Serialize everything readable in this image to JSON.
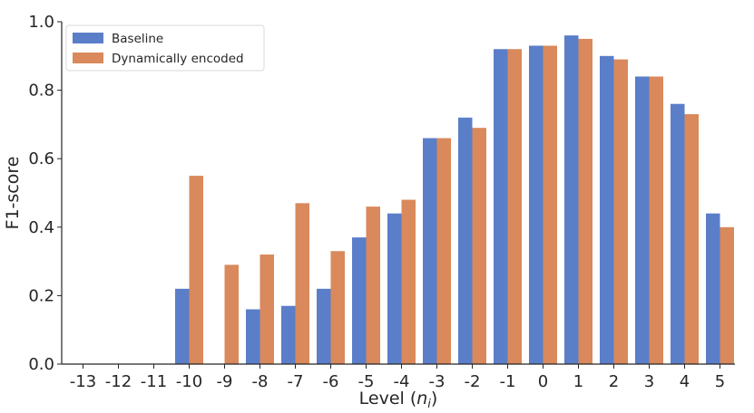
{
  "chart_data": {
    "type": "bar",
    "xlabel_prefix": "Level (",
    "xlabel_var": "n",
    "xlabel_sub": "i",
    "xlabel_suffix": ")",
    "ylabel": "F1-score",
    "ylim": [
      0,
      1.0
    ],
    "yticks": [
      "0.0",
      "0.2",
      "0.4",
      "0.6",
      "0.8",
      "1.0"
    ],
    "categories": [
      "-13",
      "-12",
      "-11",
      "-10",
      "-9",
      "-8",
      "-7",
      "-6",
      "-5",
      "-4",
      "-3",
      "-2",
      "-1",
      "0",
      "1",
      "2",
      "3",
      "4",
      "5"
    ],
    "series": [
      {
        "name": "Baseline",
        "color": "#5b7ec9",
        "values": [
          0,
          0,
          0,
          0.22,
          0,
          0.16,
          0.17,
          0.22,
          0.37,
          0.44,
          0.66,
          0.72,
          0.92,
          0.93,
          0.96,
          0.9,
          0.84,
          0.76,
          0.44
        ]
      },
      {
        "name": "Dynamically encoded",
        "color": "#d9895b",
        "values": [
          0,
          0,
          0,
          0.55,
          0.29,
          0.32,
          0.47,
          0.33,
          0.46,
          0.48,
          0.66,
          0.69,
          0.92,
          0.93,
          0.95,
          0.89,
          0.84,
          0.73,
          0.4
        ]
      }
    ],
    "legend_position": "top-left",
    "grid": false
  }
}
